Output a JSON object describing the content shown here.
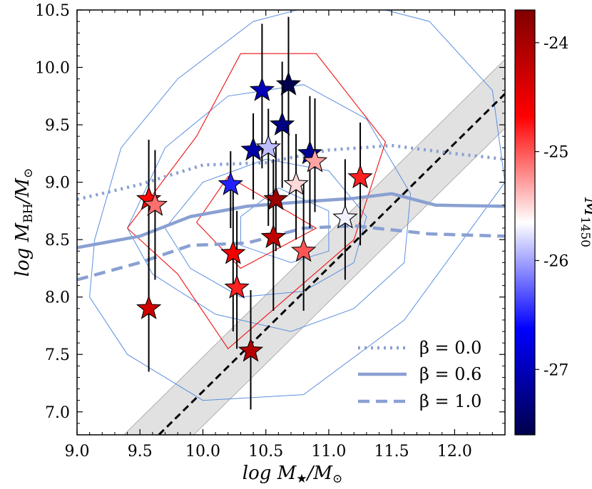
{
  "chart_data": {
    "type": "scatter",
    "xlabel": "log M★/M⊙",
    "ylabel": "log M_BH/M⊙",
    "xlim": [
      9.0,
      12.4
    ],
    "ylim": [
      6.8,
      10.5
    ],
    "x_ticks": [
      "9.0",
      "9.5",
      "10.0",
      "10.5",
      "11.0",
      "11.5",
      "12.0"
    ],
    "y_ticks": [
      "7.0",
      "7.5",
      "8.0",
      "8.5",
      "9.0",
      "9.5",
      "10.0",
      "10.5"
    ],
    "grid": false,
    "legend_position": "bottom-right",
    "colorbar": {
      "label": "M_1450",
      "range": [
        -27.6,
        -23.7
      ],
      "ticks": [
        "-24",
        "-25",
        "-26",
        "-27"
      ],
      "colormap": "seismic (red high, blue low)"
    },
    "points": [
      {
        "x": 9.57,
        "y": 8.85,
        "ylo": 7.95,
        "yhi": 9.37,
        "mag": -24.7
      },
      {
        "x": 9.62,
        "y": 8.8,
        "ylo": 8.15,
        "yhi": 9.28,
        "mag": -25.1
      },
      {
        "x": 9.57,
        "y": 7.9,
        "ylo": 7.35,
        "yhi": 8.35,
        "mag": -24.3
      },
      {
        "x": 10.22,
        "y": 8.98,
        "ylo": 8.6,
        "yhi": 9.27,
        "mag": -26.5
      },
      {
        "x": 10.24,
        "y": 8.38,
        "ylo": 7.7,
        "yhi": 9.0,
        "mag": -24.6
      },
      {
        "x": 10.27,
        "y": 8.08,
        "ylo": 7.55,
        "yhi": 8.75,
        "mag": -24.8
      },
      {
        "x": 10.38,
        "y": 7.53,
        "ylo": 7.02,
        "yhi": 8.06,
        "mag": -24.1
      },
      {
        "x": 10.4,
        "y": 9.28,
        "ylo": 8.85,
        "yhi": 9.6,
        "mag": -27.1
      },
      {
        "x": 10.47,
        "y": 9.8,
        "ylo": 9.12,
        "yhi": 10.38,
        "mag": -27.0
      },
      {
        "x": 10.52,
        "y": 9.3,
        "ylo": 8.62,
        "yhi": 9.64,
        "mag": -25.9
      },
      {
        "x": 10.56,
        "y": 8.52,
        "ylo": 7.88,
        "yhi": 9.2,
        "mag": -24.2
      },
      {
        "x": 10.58,
        "y": 8.85,
        "ylo": 8.4,
        "yhi": 9.36,
        "mag": -23.9
      },
      {
        "x": 10.63,
        "y": 9.5,
        "ylo": 8.95,
        "yhi": 10.05,
        "mag": -27.3
      },
      {
        "x": 10.68,
        "y": 9.85,
        "ylo": 9.0,
        "yhi": 10.44,
        "mag": -27.6
      },
      {
        "x": 10.74,
        "y": 8.98,
        "ylo": 8.5,
        "yhi": 9.42,
        "mag": -25.5
      },
      {
        "x": 10.8,
        "y": 8.4,
        "ylo": 7.88,
        "yhi": 9.0,
        "mag": -25.0
      },
      {
        "x": 10.85,
        "y": 9.25,
        "ylo": 8.6,
        "yhi": 9.75,
        "mag": -27.2
      },
      {
        "x": 10.89,
        "y": 9.18,
        "ylo": 8.74,
        "yhi": 9.73,
        "mag": -25.3
      },
      {
        "x": 11.13,
        "y": 8.69,
        "ylo": 8.15,
        "yhi": 9.2,
        "mag": -25.7
      },
      {
        "x": 11.25,
        "y": 9.04,
        "ylo": 8.45,
        "yhi": 9.52,
        "mag": -24.8
      }
    ],
    "relation_line": {
      "style": "black dashed",
      "x": [
        9.65,
        12.4
      ],
      "y": [
        6.8,
        9.77
      ],
      "band_halfwidth_dex": 0.3
    },
    "series": [
      {
        "name": "β = 0.0",
        "style": "dotted",
        "x": [
          9.0,
          9.5,
          10.0,
          10.5,
          11.0,
          11.5,
          12.0,
          12.4
        ],
        "y": [
          8.85,
          8.98,
          9.15,
          9.17,
          9.28,
          9.32,
          9.25,
          9.2
        ]
      },
      {
        "name": "β = 0.6",
        "style": "solid",
        "x": [
          9.0,
          9.5,
          9.9,
          10.35,
          10.8,
          11.2,
          11.5,
          11.85,
          12.4
        ],
        "y": [
          8.43,
          8.53,
          8.7,
          8.79,
          8.83,
          8.86,
          8.9,
          8.8,
          8.79
        ]
      },
      {
        "name": "β = 1.0",
        "style": "dashed",
        "x": [
          9.0,
          9.5,
          9.9,
          10.35,
          10.8,
          11.2,
          11.8,
          12.4
        ],
        "y": [
          8.15,
          8.3,
          8.45,
          8.47,
          8.6,
          8.62,
          8.55,
          8.53
        ]
      }
    ],
    "contours_blue": [
      {
        "x": [
          9.14,
          9.35,
          9.8,
          10.4,
          11.1,
          11.8,
          12.3,
          12.4,
          11.6,
          10.8,
          10.0,
          9.4,
          9.1,
          9.14
        ],
        "y": [
          8.5,
          9.3,
          9.9,
          10.4,
          10.6,
          10.4,
          9.8,
          9.0,
          7.8,
          7.15,
          7.1,
          7.5,
          8.0,
          8.5
        ]
      },
      {
        "x": [
          9.4,
          9.7,
          10.2,
          10.8,
          11.3,
          11.65,
          11.6,
          11.2,
          10.7,
          10.1,
          9.6,
          9.4
        ],
        "y": [
          8.6,
          9.3,
          9.75,
          9.85,
          9.55,
          8.9,
          8.3,
          7.9,
          7.7,
          7.85,
          8.2,
          8.6
        ]
      },
      {
        "x": [
          9.7,
          10.0,
          10.5,
          11.0,
          11.3,
          11.2,
          10.8,
          10.3,
          9.9,
          9.7
        ],
        "y": [
          8.6,
          9.0,
          9.2,
          9.1,
          8.7,
          8.3,
          8.05,
          8.0,
          8.25,
          8.6
        ]
      },
      {
        "x": [
          10.3,
          10.6,
          11.0,
          11.0,
          10.7,
          10.3,
          10.3
        ],
        "y": [
          8.7,
          8.95,
          8.75,
          8.4,
          8.3,
          8.45,
          8.7
        ]
      }
    ],
    "contours_red": [
      {
        "x": [
          9.4,
          9.95,
          10.3,
          10.9,
          11.45,
          11.2,
          10.2,
          9.8,
          9.4
        ],
        "y": [
          8.6,
          9.4,
          10.12,
          10.12,
          9.35,
          8.5,
          7.55,
          8.2,
          8.6
        ]
      },
      {
        "x": [
          9.95,
          10.2,
          10.9,
          10.3,
          9.95
        ],
        "y": [
          8.65,
          9.05,
          8.6,
          8.25,
          8.65
        ]
      }
    ]
  }
}
